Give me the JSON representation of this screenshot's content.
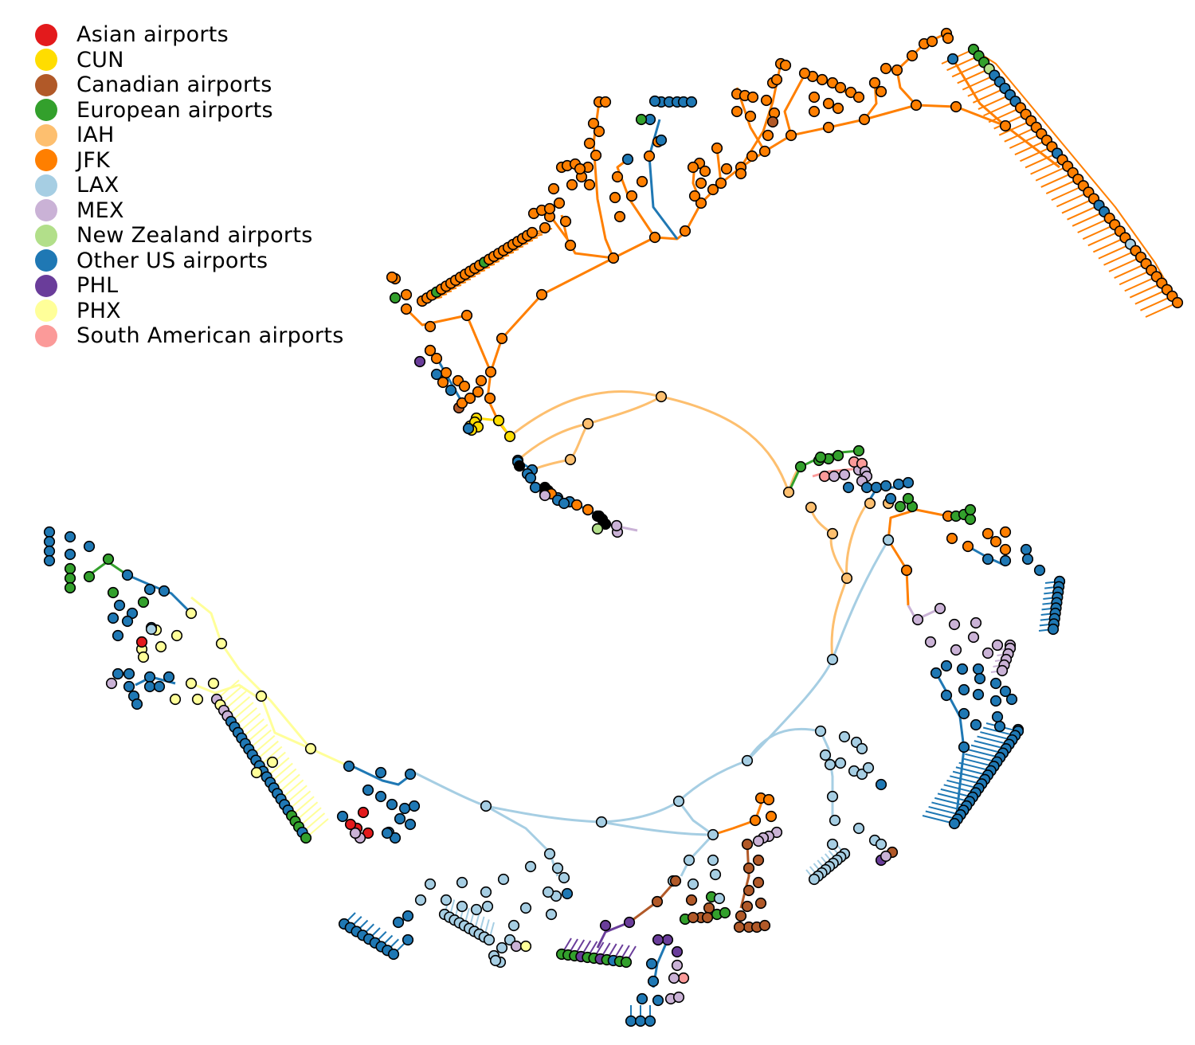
{
  "chart_data": {
    "type": "tree",
    "layout": "radial",
    "legend_position": "top-left",
    "legend": [
      {
        "label": "Asian airports",
        "color": "#e31a1c"
      },
      {
        "label": "CUN",
        "color": "#ffdd00"
      },
      {
        "label": "Canadian airports",
        "color": "#b15928"
      },
      {
        "label": "European airports",
        "color": "#33a02c"
      },
      {
        "label": "IAH",
        "color": "#fdbf6f"
      },
      {
        "label": "JFK",
        "color": "#ff7f00"
      },
      {
        "label": "LAX",
        "color": "#a6cee3"
      },
      {
        "label": "MEX",
        "color": "#cab2d6"
      },
      {
        "label": "New Zealand airports",
        "color": "#b2df8a"
      },
      {
        "label": "Other US airports",
        "color": "#1f78b4"
      },
      {
        "label": "PHL",
        "color": "#6a3d9a"
      },
      {
        "label": "PHX",
        "color": "#ffff99"
      },
      {
        "label": "South American airports",
        "color": "#fb9a99"
      }
    ]
  }
}
